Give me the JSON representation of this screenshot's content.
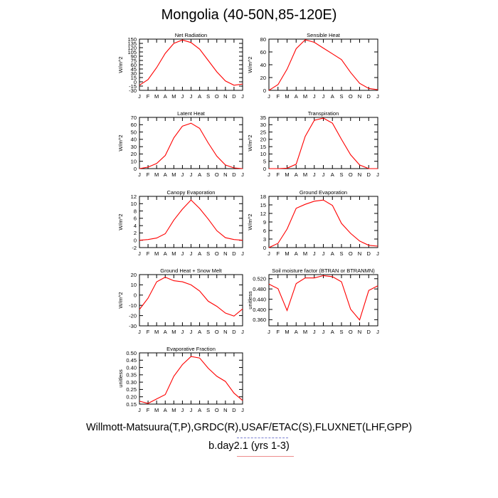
{
  "title": "Mongolia (40-50N,85-120E)",
  "footer": {
    "credit": "Willmott-Matsuura(T,P),GRDC(R),USAF/ETAC(S),FLUXNET(LHF,GPP)",
    "case": "b.day2.1 (yrs 1-3)"
  },
  "colors": {
    "line": "#ff0000",
    "axis": "#000000",
    "footer_dash": "#7a7fd0",
    "footer_underline": "#ee8c8c"
  },
  "chart_data": [
    {
      "type": "line",
      "title": "Net Radiation",
      "ylabel": "W/m^2",
      "categories": [
        "J",
        "F",
        "M",
        "A",
        "M",
        "J",
        "J",
        "A",
        "S",
        "O",
        "N",
        "D",
        "J"
      ],
      "yticks": [
        -30,
        -15,
        0,
        15,
        30,
        45,
        60,
        75,
        90,
        105,
        120,
        135,
        150
      ],
      "ytick_labels": [
        "-30",
        "-15",
        "0",
        "15",
        "30",
        "45",
        "60",
        "75",
        "90",
        "105",
        "120",
        "135",
        "150"
      ],
      "ylim": [
        -30,
        150
      ],
      "values": [
        -12,
        8,
        50,
        100,
        135,
        147,
        138,
        115,
        75,
        35,
        3,
        -12,
        -8
      ]
    },
    {
      "type": "line",
      "title": "Sensible Heat",
      "ylabel": "W/m^2",
      "categories": [
        "J",
        "F",
        "M",
        "A",
        "M",
        "J",
        "J",
        "A",
        "S",
        "O",
        "N",
        "D",
        "J"
      ],
      "yticks": [
        0,
        20,
        40,
        60,
        80
      ],
      "ytick_labels": [
        "0",
        "20",
        "40",
        "60",
        "80"
      ],
      "ylim": [
        0,
        80
      ],
      "values": [
        0,
        9,
        33,
        65,
        79,
        75,
        66,
        57,
        48,
        28,
        11,
        3,
        1
      ]
    },
    {
      "type": "line",
      "title": "Latent Heat",
      "ylabel": "W/m^2",
      "categories": [
        "J",
        "F",
        "M",
        "A",
        "M",
        "J",
        "J",
        "A",
        "S",
        "O",
        "N",
        "D",
        "J"
      ],
      "yticks": [
        0,
        10,
        20,
        30,
        40,
        50,
        60,
        70
      ],
      "ytick_labels": [
        "0",
        "10",
        "20",
        "30",
        "40",
        "50",
        "60",
        "70"
      ],
      "ylim": [
        0,
        70
      ],
      "values": [
        0,
        2,
        7,
        18,
        42,
        58,
        62,
        55,
        35,
        17,
        5,
        1,
        0
      ]
    },
    {
      "type": "line",
      "title": "Transpiration",
      "ylabel": "W/m^2",
      "categories": [
        "J",
        "F",
        "M",
        "A",
        "M",
        "J",
        "J",
        "A",
        "S",
        "O",
        "N",
        "D",
        "J"
      ],
      "yticks": [
        0,
        5,
        10,
        15,
        20,
        25,
        30,
        35
      ],
      "ytick_labels": [
        "0",
        "5",
        "10",
        "15",
        "20",
        "25",
        "30",
        "35"
      ],
      "ylim": [
        0,
        35
      ],
      "values": [
        0,
        0,
        0.3,
        3,
        22,
        33,
        34.5,
        31,
        20,
        9.5,
        2.5,
        0,
        0
      ]
    },
    {
      "type": "line",
      "title": "Canopy Evaporation",
      "ylabel": "W/m^2",
      "categories": [
        "J",
        "F",
        "M",
        "A",
        "M",
        "J",
        "J",
        "A",
        "S",
        "O",
        "N",
        "D",
        "J"
      ],
      "yticks": [
        -2,
        0,
        2,
        4,
        6,
        8,
        10,
        12
      ],
      "ytick_labels": [
        "-2",
        "0",
        "2",
        "4",
        "6",
        "8",
        "10",
        "12"
      ],
      "ylim": [
        -2,
        12
      ],
      "values": [
        0,
        0.2,
        0.6,
        1.8,
        5.5,
        8.5,
        11,
        8.7,
        5.8,
        2.6,
        0.7,
        0.2,
        0
      ]
    },
    {
      "type": "line",
      "title": "Ground Evaporation",
      "ylabel": "W/m^2",
      "categories": [
        "J",
        "F",
        "M",
        "A",
        "M",
        "J",
        "J",
        "A",
        "S",
        "O",
        "N",
        "D",
        "J"
      ],
      "yticks": [
        0,
        3,
        6,
        9,
        12,
        15,
        18
      ],
      "ytick_labels": [
        "0",
        "3",
        "6",
        "9",
        "12",
        "15",
        "18"
      ],
      "ylim": [
        0,
        18
      ],
      "values": [
        0,
        1.5,
        6.5,
        13.8,
        15.2,
        16.3,
        16.7,
        14.8,
        8.5,
        5,
        2.3,
        0.8,
        0.5
      ]
    },
    {
      "type": "line",
      "title": "Ground Heat + Snow Melt",
      "ylabel": "W/m^2",
      "categories": [
        "J",
        "F",
        "M",
        "A",
        "M",
        "J",
        "J",
        "A",
        "S",
        "O",
        "N",
        "D",
        "J"
      ],
      "yticks": [
        -30,
        -20,
        -10,
        0,
        10,
        20
      ],
      "ytick_labels": [
        "-30",
        "-20",
        "-10",
        "0",
        "10",
        "20"
      ],
      "ylim": [
        -30,
        20
      ],
      "values": [
        -14,
        -3,
        13,
        17.5,
        14,
        13,
        10,
        4,
        -6,
        -11,
        -17.5,
        -20.5,
        -13.5
      ]
    },
    {
      "type": "line",
      "title": "Soil moisture factor (BTRAN or BTRANMN)",
      "ylabel": "unitless",
      "categories": [
        "J",
        "F",
        "M",
        "A",
        "M",
        "J",
        "J",
        "A",
        "S",
        "O",
        "N",
        "D",
        "J"
      ],
      "yticks": [
        0.36,
        0.4,
        0.44,
        0.48,
        0.52
      ],
      "ytick_labels": [
        "0.360",
        "0.400",
        "0.440",
        "0.480",
        "0.520"
      ],
      "ylim": [
        0.336,
        0.536
      ],
      "values": [
        0.499,
        0.481,
        0.396,
        0.501,
        0.523,
        0.523,
        0.532,
        0.528,
        0.508,
        0.401,
        0.359,
        0.474,
        0.492
      ]
    },
    {
      "type": "line",
      "title": "Evaporative Fraction",
      "ylabel": "unitless",
      "categories": [
        "J",
        "F",
        "M",
        "A",
        "M",
        "J",
        "J",
        "A",
        "S",
        "O",
        "N",
        "D",
        "J"
      ],
      "yticks": [
        0.15,
        0.2,
        0.25,
        0.3,
        0.35,
        0.4,
        0.45,
        0.5
      ],
      "ytick_labels": [
        "0.15",
        "0.20",
        "0.25",
        "0.30",
        "0.35",
        "0.40",
        "0.45",
        "0.50"
      ],
      "ylim": [
        0.15,
        0.5
      ],
      "values": [
        0.17,
        0.155,
        0.185,
        0.215,
        0.34,
        0.42,
        0.475,
        0.465,
        0.395,
        0.34,
        0.305,
        0.225,
        0.175
      ]
    }
  ]
}
